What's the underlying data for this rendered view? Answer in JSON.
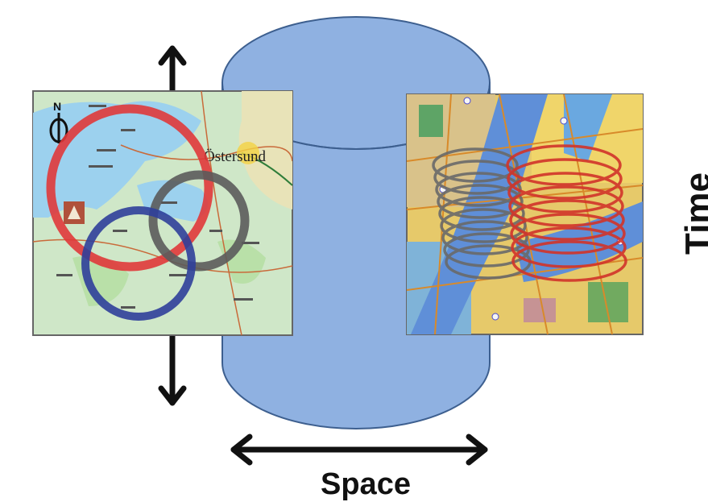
{
  "labels": {
    "time": "Time",
    "space": "Space",
    "map_city": "Östersund",
    "compass_letter": "N"
  },
  "colors": {
    "cylinder": "#8fb1e1",
    "cylinder_edge": "#3d5f8f",
    "circle_red": "#e0383a",
    "circle_gray": "#5b5b5b",
    "circle_blue": "#2f3f9a",
    "spiral_gray": "#6a6a6a",
    "spiral_red": "#d2342a",
    "arrow": "#111111"
  },
  "icons": {
    "map_left": "topographic-map-image",
    "map_right": "city-street-map-image",
    "compass": "north-compass-icon"
  }
}
